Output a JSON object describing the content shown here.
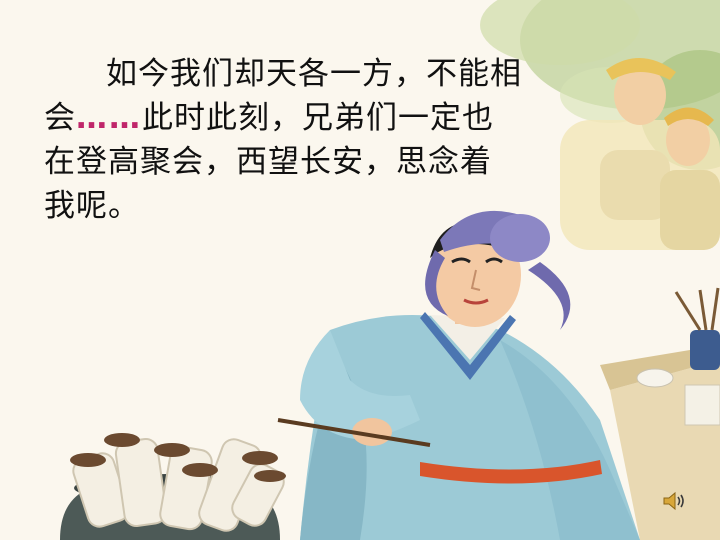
{
  "slide": {
    "text": {
      "line1": "如今我们却天各一方，不能相",
      "line2_start": "会",
      "line2_ellipsis": "……",
      "line2_end": "此时此刻，兄弟们一定也",
      "line3": "在登高聚会，西望长安，思念着",
      "line4": "我呢。"
    },
    "icons": {
      "audio": "speaker-icon"
    },
    "colors": {
      "background": "#fbf7ee",
      "text": "#111111",
      "ellipsis": "#c0266a",
      "robe": "#9ccad6",
      "hat": "#7c78b8"
    }
  }
}
